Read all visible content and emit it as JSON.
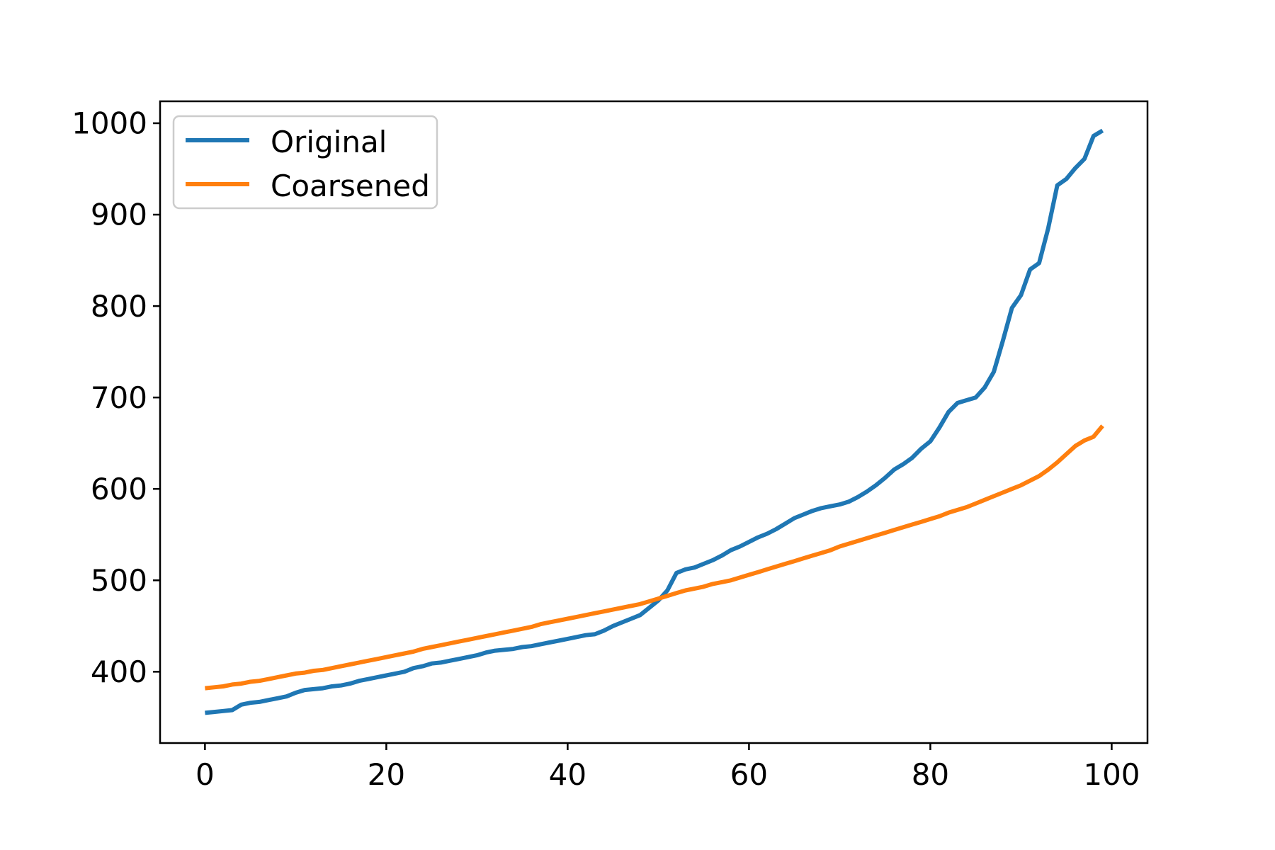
{
  "figure": {
    "background": "#ffffff",
    "spine_color": "#000000",
    "tick_color": "#000000",
    "label_color": "#000000"
  },
  "legend": {
    "position": "upper left",
    "border_color": "#cccccc",
    "face_color": "#ffffff",
    "entries": [
      "Original",
      "Coarsened"
    ]
  },
  "chart_data": {
    "type": "line",
    "title": "",
    "xlabel": "",
    "ylabel": "",
    "grid": false,
    "xlim": [
      -4.95,
      103.95
    ],
    "ylim": [
      322,
      1024
    ],
    "xticks": [
      0,
      20,
      40,
      60,
      80,
      100
    ],
    "yticks": [
      400,
      500,
      600,
      700,
      800,
      900,
      1000
    ],
    "x": [
      0,
      1,
      2,
      3,
      4,
      5,
      6,
      7,
      8,
      9,
      10,
      11,
      12,
      13,
      14,
      15,
      16,
      17,
      18,
      19,
      20,
      21,
      22,
      23,
      24,
      25,
      26,
      27,
      28,
      29,
      30,
      31,
      32,
      33,
      34,
      35,
      36,
      37,
      38,
      39,
      40,
      41,
      42,
      43,
      44,
      45,
      46,
      47,
      48,
      49,
      50,
      51,
      52,
      53,
      54,
      55,
      56,
      57,
      58,
      59,
      60,
      61,
      62,
      63,
      64,
      65,
      66,
      67,
      68,
      69,
      70,
      71,
      72,
      73,
      74,
      75,
      76,
      77,
      78,
      79,
      80,
      81,
      82,
      83,
      84,
      85,
      86,
      87,
      88,
      89,
      90,
      91,
      92,
      93,
      94,
      95,
      96,
      97,
      98,
      99
    ],
    "series": [
      {
        "name": "Original",
        "color": "#1f77b4",
        "values": [
          355,
          356,
          357,
          358,
          364,
          366,
          367,
          369,
          371,
          373,
          377,
          380,
          381,
          382,
          384,
          385,
          387,
          390,
          392,
          394,
          396,
          398,
          400,
          404,
          406,
          409,
          410,
          412,
          414,
          416,
          418,
          421,
          423,
          424,
          425,
          427,
          428,
          430,
          432,
          434,
          436,
          438,
          440,
          441,
          445,
          450,
          454,
          458,
          462,
          470,
          478,
          489,
          508,
          512,
          514,
          518,
          522,
          527,
          533,
          537,
          542,
          547,
          551,
          556,
          562,
          568,
          572,
          576,
          579,
          581,
          583,
          586,
          591,
          597,
          604,
          612,
          621,
          627,
          634,
          644,
          652,
          667,
          684,
          694,
          697,
          700,
          711,
          728,
          762,
          798,
          812,
          840,
          847,
          885,
          932,
          939,
          951,
          961,
          986,
          992
        ]
      },
      {
        "name": "Coarsened",
        "color": "#ff7f0e",
        "values": [
          382,
          383,
          384,
          386,
          387,
          389,
          390,
          392,
          394,
          396,
          398,
          399,
          401,
          402,
          404,
          406,
          408,
          410,
          412,
          414,
          416,
          418,
          420,
          422,
          425,
          427,
          429,
          431,
          433,
          435,
          437,
          439,
          441,
          443,
          445,
          447,
          449,
          452,
          454,
          456,
          458,
          460,
          462,
          464,
          466,
          468,
          470,
          472,
          474,
          477,
          480,
          483,
          486,
          489,
          491,
          493,
          496,
          498,
          500,
          503,
          506,
          509,
          512,
          515,
          518,
          521,
          524,
          527,
          530,
          533,
          537,
          540,
          543,
          546,
          549,
          552,
          555,
          558,
          561,
          564,
          567,
          570,
          574,
          577,
          580,
          584,
          588,
          592,
          596,
          600,
          604,
          609,
          614,
          621,
          629,
          638,
          647,
          653,
          657,
          669
        ]
      }
    ],
    "legend_position": "upper left"
  }
}
